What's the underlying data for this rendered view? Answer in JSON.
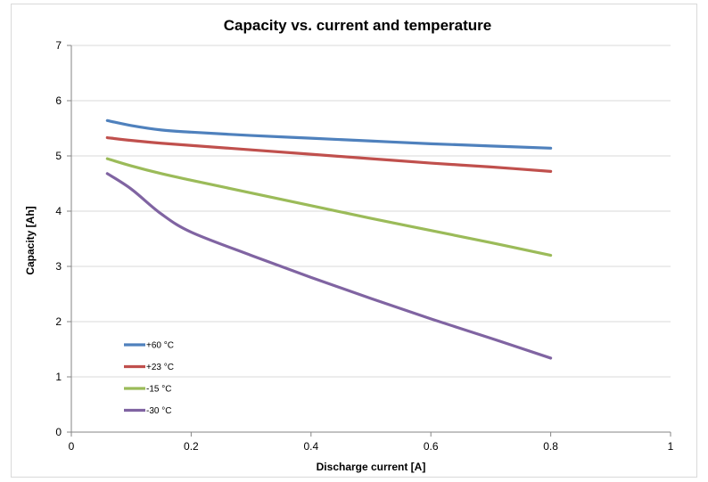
{
  "chart_data": {
    "type": "line",
    "title": "Capacity vs. current and temperature",
    "xlabel": "Discharge current [A]",
    "ylabel": "Capacity [Ah]",
    "xlim": [
      0,
      1
    ],
    "ylim": [
      0,
      7
    ],
    "x_ticks": [
      "0",
      "0.2",
      "0.4",
      "0.6",
      "0.8",
      "1"
    ],
    "y_ticks": [
      "0",
      "1",
      "2",
      "3",
      "4",
      "5",
      "6",
      "7"
    ],
    "grid": "horizontal",
    "legend_position": "bottom-left",
    "x": [
      0.06,
      0.1,
      0.15,
      0.2,
      0.3,
      0.4,
      0.5,
      0.6,
      0.7,
      0.8
    ],
    "series": [
      {
        "name": "+60 °C",
        "color": "#4f81bd",
        "values": [
          5.64,
          5.55,
          5.47,
          5.43,
          5.37,
          5.32,
          5.27,
          5.22,
          5.18,
          5.14
        ]
      },
      {
        "name": "+23 °C",
        "color": "#c0504d",
        "values": [
          5.33,
          5.28,
          5.23,
          5.19,
          5.11,
          5.03,
          4.95,
          4.87,
          4.8,
          4.72
        ]
      },
      {
        "name": "-15 °C",
        "color": "#9bbb59",
        "values": [
          4.95,
          4.82,
          4.68,
          4.56,
          4.33,
          4.1,
          3.87,
          3.65,
          3.43,
          3.2
        ]
      },
      {
        "name": "-30 °C",
        "color": "#8064a2",
        "values": [
          4.68,
          4.4,
          3.95,
          3.62,
          3.2,
          2.8,
          2.42,
          2.05,
          1.7,
          1.34
        ]
      }
    ]
  }
}
